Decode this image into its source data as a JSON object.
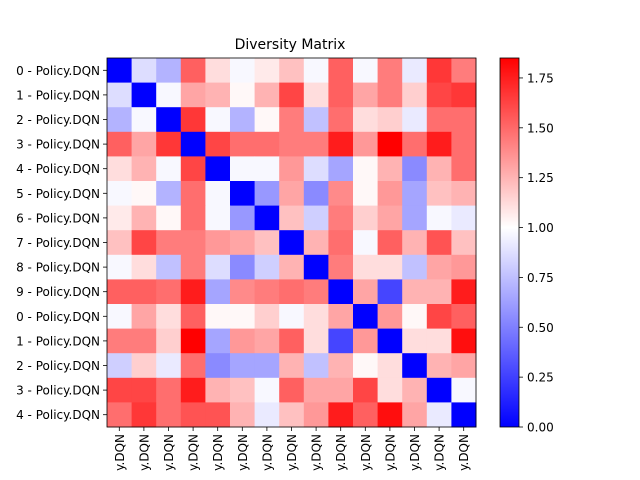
{
  "chart_data": {
    "type": "heatmap",
    "title": "Diversity Matrix",
    "row_labels": [
      "0 - Policy.DQN",
      "1 - Policy.DQN",
      "2 - Policy.DQN",
      "3 - Policy.DQN",
      "4 - Policy.DQN",
      "5 - Policy.DQN",
      "6 - Policy.DQN",
      "7 - Policy.DQN",
      "8 - Policy.DQN",
      "9 - Policy.DQN",
      "0 - Policy.DQN",
      "1 - Policy.DQN",
      "2 - Policy.DQN",
      "3 - Policy.DQN",
      "4 - Policy.DQN"
    ],
    "col_labels": [
      "y.DQN",
      "y.DQN",
      "y.DQN",
      "y.DQN",
      "y.DQN",
      "y.DQN",
      "y.DQN",
      "y.DQN",
      "y.DQN",
      "y.DQN",
      "y.DQN",
      "y.DQN",
      "y.DQN",
      "y.DQN",
      "y.DQN"
    ],
    "colormap": "bwr",
    "colors": {
      "low": "#0000ff",
      "mid": "#ffffff",
      "high": "#ff0000"
    },
    "vmin": 0.0,
    "vmax": 1.85,
    "colorbar_ticks": [
      "0.00",
      "0.25",
      "0.50",
      "0.75",
      "1.00",
      "1.25",
      "1.50",
      "1.75"
    ],
    "colorbar_tick_values": [
      0.0,
      0.25,
      0.5,
      0.75,
      1.0,
      1.25,
      1.5,
      1.75
    ],
    "values": [
      [
        0.0,
        0.8,
        0.65,
        1.5,
        1.05,
        0.9,
        1.0,
        1.15,
        0.9,
        1.5,
        0.9,
        1.4,
        0.85,
        1.65,
        1.4
      ],
      [
        0.8,
        0.0,
        0.9,
        1.25,
        1.2,
        0.95,
        1.2,
        1.6,
        1.05,
        1.5,
        1.25,
        1.4,
        1.1,
        1.6,
        1.65
      ],
      [
        0.65,
        0.9,
        0.0,
        1.65,
        0.9,
        0.65,
        0.95,
        1.4,
        0.7,
        1.45,
        1.05,
        1.1,
        0.85,
        1.45,
        1.45
      ],
      [
        1.5,
        1.25,
        1.65,
        0.0,
        1.6,
        1.45,
        1.45,
        1.4,
        1.4,
        1.75,
        1.3,
        1.85,
        1.45,
        1.75,
        1.45
      ],
      [
        1.05,
        1.2,
        0.9,
        1.6,
        0.0,
        0.9,
        0.9,
        1.3,
        0.8,
        0.6,
        0.95,
        1.2,
        0.5,
        1.2,
        1.45
      ],
      [
        0.9,
        0.95,
        0.65,
        1.45,
        0.9,
        0.0,
        0.55,
        1.25,
        0.5,
        1.35,
        0.95,
        1.3,
        0.6,
        1.15,
        1.2
      ],
      [
        1.0,
        1.2,
        0.95,
        1.45,
        0.9,
        0.55,
        0.0,
        1.15,
        0.75,
        1.4,
        1.1,
        1.25,
        0.6,
        0.9,
        0.85
      ],
      [
        1.15,
        1.6,
        1.4,
        1.4,
        1.3,
        1.25,
        1.15,
        0.0,
        1.2,
        1.45,
        0.9,
        1.5,
        1.2,
        1.55,
        1.15
      ],
      [
        0.9,
        1.05,
        0.7,
        1.4,
        0.8,
        0.5,
        0.75,
        1.2,
        0.0,
        1.4,
        1.05,
        1.05,
        0.7,
        1.25,
        1.3
      ],
      [
        1.5,
        1.5,
        1.45,
        1.75,
        0.6,
        1.35,
        1.4,
        1.45,
        1.4,
        0.0,
        1.25,
        0.25,
        1.2,
        1.2,
        1.75
      ],
      [
        0.9,
        1.25,
        1.05,
        1.5,
        0.95,
        0.95,
        1.1,
        0.9,
        1.05,
        1.25,
        0.0,
        1.3,
        0.95,
        1.6,
        1.5
      ],
      [
        1.4,
        1.4,
        1.1,
        1.85,
        0.6,
        1.3,
        1.25,
        1.5,
        1.05,
        0.25,
        1.3,
        0.0,
        1.05,
        1.05,
        1.8
      ],
      [
        0.75,
        1.1,
        0.85,
        1.45,
        0.5,
        0.6,
        0.6,
        1.2,
        0.7,
        1.2,
        0.95,
        1.05,
        0.0,
        1.2,
        1.25
      ],
      [
        1.6,
        1.6,
        1.45,
        1.75,
        1.2,
        1.15,
        0.9,
        1.5,
        1.25,
        1.25,
        1.6,
        1.05,
        1.2,
        0.0,
        0.9
      ],
      [
        1.45,
        1.65,
        1.45,
        1.55,
        1.55,
        1.2,
        0.85,
        1.15,
        1.3,
        1.75,
        1.5,
        1.8,
        1.25,
        0.85,
        0.0
      ]
    ]
  }
}
